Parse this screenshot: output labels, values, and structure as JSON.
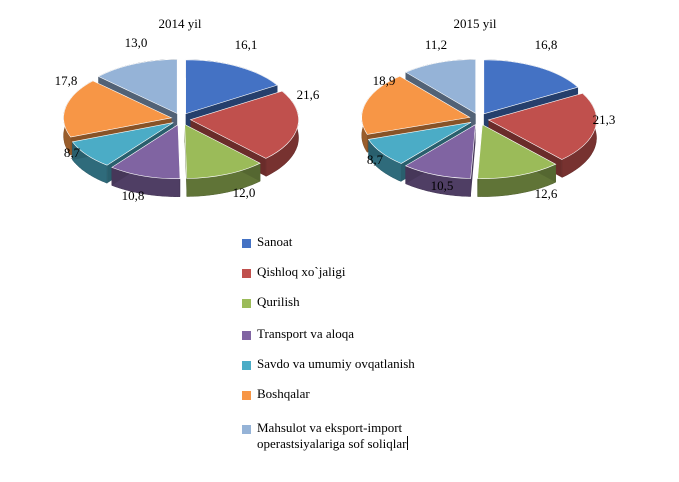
{
  "chart_data": [
    {
      "type": "pie",
      "title": "2014 yil",
      "categories": [
        "Sanoat",
        "Qishloq xo`jaligi",
        "Qurilish",
        "Transport  va aloqa",
        "Savdo va umumiy  ovqatlanish",
        "Boshqalar",
        "Mahsulot va eksport-import operastsiyalariga  sof soliqlar"
      ],
      "values": [
        16.1,
        21.6,
        12.0,
        10.8,
        8.7,
        17.8,
        13.0
      ],
      "labels": [
        "16,1",
        "21,6",
        "12,0",
        "10,8",
        "8,7",
        "17,8",
        "13,0"
      ]
    },
    {
      "type": "pie",
      "title": "2015 yil",
      "categories": [
        "Sanoat",
        "Qishloq xo`jaligi",
        "Qurilish",
        "Transport  va aloqa",
        "Savdo va umumiy  ovqatlanish",
        "Boshqalar",
        "Mahsulot va eksport-import operastsiyalariga  sof soliqlar"
      ],
      "values": [
        16.8,
        21.3,
        12.6,
        10.5,
        8.7,
        18.9,
        11.2
      ],
      "labels": [
        "16,8",
        "21,3",
        "12,6",
        "10,5",
        "8,7",
        "18,9",
        "11,2"
      ]
    }
  ],
  "legend": {
    "position": "bottom",
    "items": [
      {
        "label": "Sanoat",
        "color": "#4472C4"
      },
      {
        "label": "Qishloq xo`jaligi",
        "color": "#C0504D"
      },
      {
        "label": "Qurilish",
        "color": "#9BBB59"
      },
      {
        "label": "Transport  va aloqa",
        "color": "#8064A2"
      },
      {
        "label": "Savdo va umumiy  ovqatlanish",
        "color": "#4BACC6"
      },
      {
        "label": "Boshqalar",
        "color": "#F79646"
      },
      {
        "label": "Mahsulot va eksport-import\noperastsiyalariga  sof soliqlar",
        "color": "#95B3D7"
      }
    ]
  },
  "colors": [
    "#4472C4",
    "#C0504D",
    "#9BBB59",
    "#8064A2",
    "#4BACC6",
    "#F79646",
    "#95B3D7"
  ]
}
